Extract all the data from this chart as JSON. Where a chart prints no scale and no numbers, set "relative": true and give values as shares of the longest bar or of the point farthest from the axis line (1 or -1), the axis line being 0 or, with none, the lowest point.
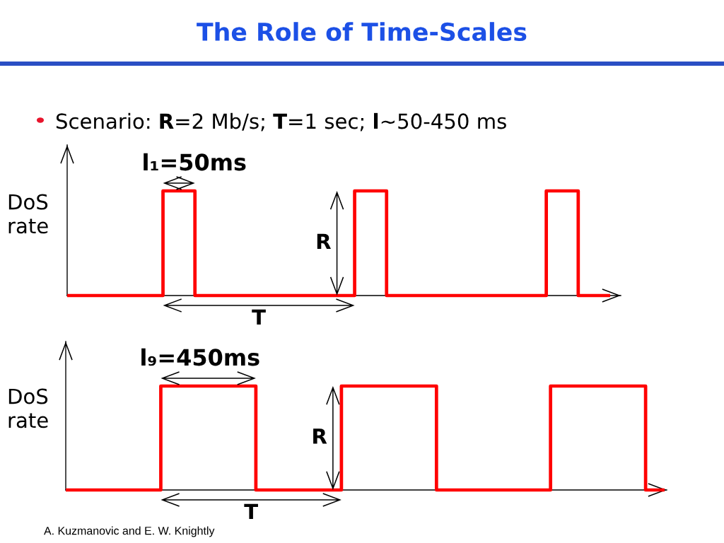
{
  "chart_data": [
    {
      "type": "step",
      "title": "The Role of Time-Scales",
      "subtitle": "Scenario: R=2 Mb/s; T=1 sec; l~50-450 ms",
      "ylabel": "DoS\nrate",
      "relative": true,
      "line_style": "solid",
      "categories": [
        null,
        null,
        null,
        null,
        null,
        null,
        null,
        null,
        null,
        null,
        null,
        null,
        null,
        null,
        null,
        null,
        null,
        null
      ],
      "series": [
        {
          "color": "#ff0000",
          "values": [
            0,
            0,
            0,
            1,
            0,
            0,
            0,
            0,
            0,
            1,
            0,
            0,
            0,
            0,
            0,
            1,
            0,
            0
          ]
        }
      ],
      "annotations": [
        "l₁=50ms",
        "R",
        "T"
      ]
    },
    {
      "type": "step",
      "ylabel": "DoS\nrate",
      "relative": true,
      "line_style": "solid",
      "categories": [
        null,
        null,
        null,
        null,
        null,
        null,
        null,
        null,
        null,
        null,
        null,
        null,
        null,
        null,
        null,
        null,
        null,
        null,
        null,
        null,
        null,
        null,
        null,
        null,
        null,
        null,
        null,
        null,
        null,
        null,
        null,
        null,
        null,
        null,
        null,
        null,
        null,
        null,
        null,
        null,
        null,
        null,
        null,
        null,
        null,
        null,
        null,
        null,
        null,
        null,
        null,
        null,
        null,
        null,
        null,
        null,
        null,
        null,
        null,
        null,
        null,
        null,
        null,
        null
      ],
      "series": [
        {
          "color": "#ff0000",
          "values": [
            0,
            0,
            0,
            0,
            0,
            0,
            0,
            0,
            0,
            0,
            1,
            1,
            1,
            1,
            1,
            1,
            1,
            1,
            1,
            1,
            0,
            0,
            0,
            0,
            0,
            0,
            0,
            0,
            0,
            1,
            1,
            1,
            1,
            1,
            1,
            1,
            1,
            1,
            1,
            0,
            0,
            0,
            0,
            0,
            0,
            0,
            0,
            0,
            0,
            0,
            0,
            1,
            1,
            1,
            1,
            1,
            1,
            1,
            1,
            1,
            1,
            0,
            0,
            0
          ]
        }
      ],
      "annotations": [
        "l₉=450ms",
        "R",
        "T",
        "A. Kuzmanovic and E. W. Knightly"
      ]
    }
  ]
}
